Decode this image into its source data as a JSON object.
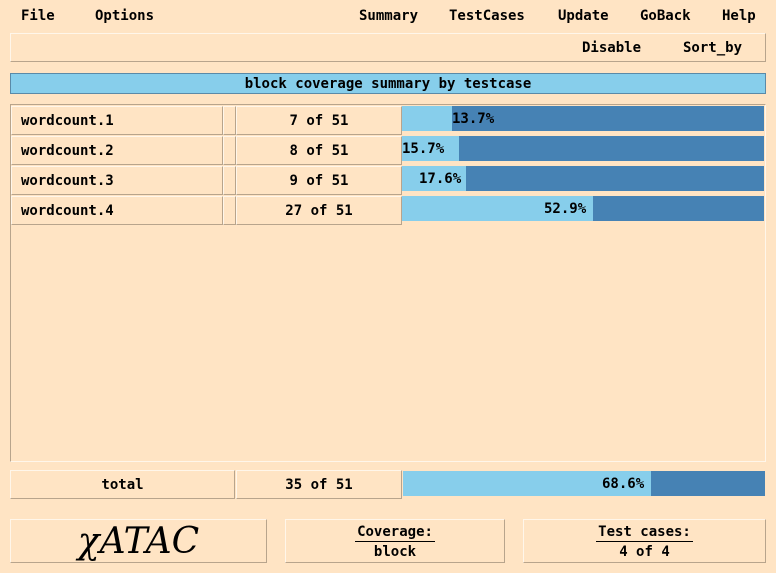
{
  "menu": {
    "left": [
      "File",
      "Options"
    ],
    "right": [
      "Summary",
      "TestCases",
      "Update",
      "GoBack",
      "Help"
    ]
  },
  "toolbar": {
    "disable": "Disable",
    "sort_by": "Sort_by"
  },
  "title": "block coverage summary by testcase",
  "rows": [
    {
      "name": "wordcount.1",
      "count": "7 of 51",
      "pct_label": "13.7%",
      "fraction": 0.137
    },
    {
      "name": "wordcount.2",
      "count": "8 of 51",
      "pct_label": "15.7%",
      "fraction": 0.157
    },
    {
      "name": "wordcount.3",
      "count": "9 of 51",
      "pct_label": "17.6%",
      "fraction": 0.176
    },
    {
      "name": "wordcount.4",
      "count": "27 of 51",
      "pct_label": "52.9%",
      "fraction": 0.529
    }
  ],
  "total": {
    "name": "total",
    "count": "35 of 51",
    "pct_label": "68.6%",
    "fraction": 0.686
  },
  "logo": "χATAC",
  "coverage": {
    "label": "Coverage:",
    "value": "block"
  },
  "testcases": {
    "label": "Test cases:",
    "value": "4 of 4"
  },
  "colors": {
    "background": "#ffe4c4",
    "bar_track": "#4682b4",
    "bar_fill": "#87ceeb",
    "title_bg": "#87ceeb"
  }
}
